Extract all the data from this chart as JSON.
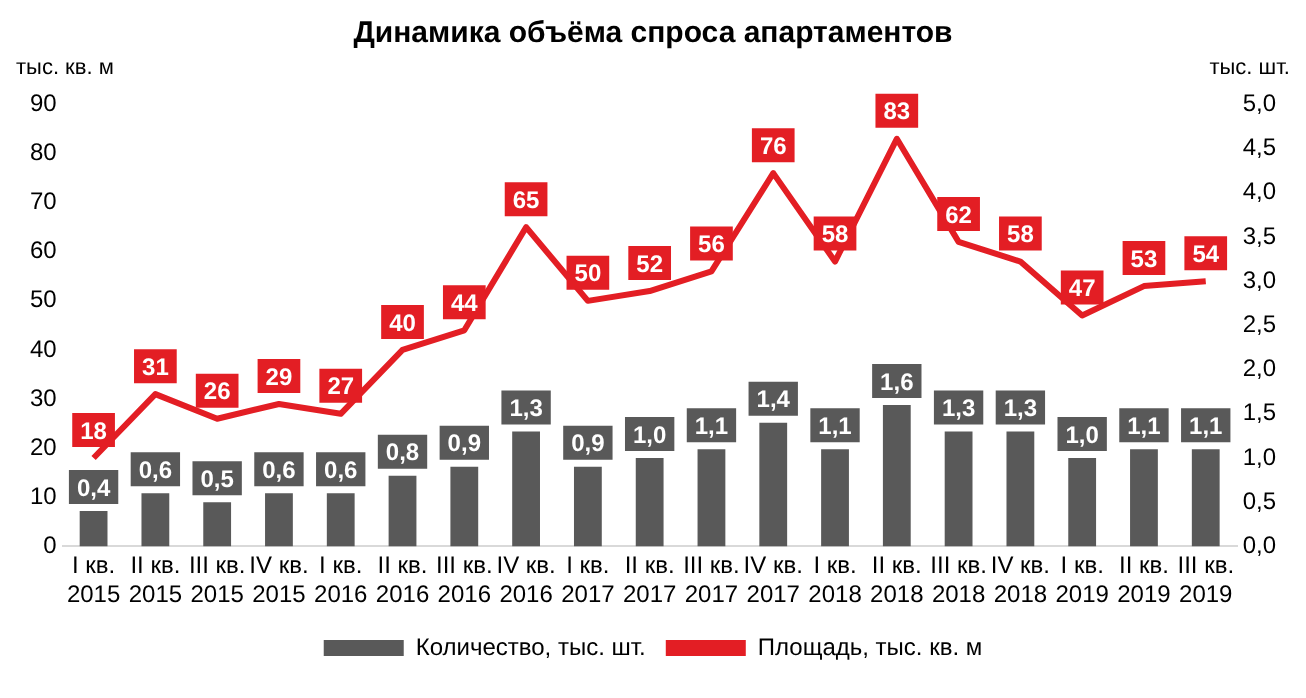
{
  "chart_data": {
    "type": "bar",
    "title": "Динамика объёма спроса апартаментов",
    "ylabel": "тыс. кв. м",
    "y2label": "тыс. шт.",
    "categories": [
      "I кв. 2015",
      "II кв. 2015",
      "III кв. 2015",
      "IV кв. 2015",
      "I кв. 2016",
      "II кв. 2016",
      "III кв. 2016",
      "IV кв. 2016",
      "I кв. 2017",
      "II кв. 2017",
      "III кв. 2017",
      "IV кв. 2017",
      "I кв. 2018",
      "II кв. 2018",
      "III кв. 2018",
      "IV кв. 2018",
      "I кв. 2019",
      "II кв. 2019",
      "III кв. 2019"
    ],
    "series": [
      {
        "name": "Количество, тыс. шт.",
        "axis": "y2",
        "color": "#595959",
        "values": [
          0.4,
          0.6,
          0.5,
          0.6,
          0.6,
          0.8,
          0.9,
          1.3,
          0.9,
          1.0,
          1.1,
          1.4,
          1.1,
          1.6,
          1.3,
          1.3,
          1.0,
          1.1,
          1.1
        ],
        "value_labels": [
          "0,4",
          "0,6",
          "0,5",
          "0,6",
          "0,6",
          "0,8",
          "0,9",
          "1,3",
          "0,9",
          "1,0",
          "1,1",
          "1,4",
          "1,1",
          "1,6",
          "1,3",
          "1,3",
          "1,0",
          "1,1",
          "1,1"
        ]
      },
      {
        "name": "Площадь, тыс. кв. м",
        "type": "line",
        "color": "#e31e24",
        "values": [
          18,
          31,
          26,
          29,
          27,
          40,
          44,
          65,
          50,
          52,
          56,
          76,
          58,
          83,
          62,
          58,
          47,
          53,
          54
        ],
        "value_labels": [
          "18",
          "31",
          "26",
          "29",
          "27",
          "40",
          "44",
          "65",
          "50",
          "52",
          "56",
          "76",
          "58",
          "83",
          "62",
          "58",
          "47",
          "53",
          "54"
        ]
      }
    ],
    "ylim": [
      0,
      90
    ],
    "yticks": [
      0,
      10,
      20,
      30,
      40,
      50,
      60,
      70,
      80,
      90
    ],
    "y2lim": [
      0,
      5
    ],
    "y2ticks": [
      {
        "value": 0,
        "label": "0,0"
      },
      {
        "value": 0.5,
        "label": "0,5"
      },
      {
        "value": 1,
        "label": "1,0"
      },
      {
        "value": 1.5,
        "label": "1,5"
      },
      {
        "value": 2,
        "label": "2,0"
      },
      {
        "value": 2.5,
        "label": "2,5"
      },
      {
        "value": 3,
        "label": "3,0"
      },
      {
        "value": 3.5,
        "label": "3,5"
      },
      {
        "value": 4,
        "label": "4,0"
      },
      {
        "value": 4.5,
        "label": "4,5"
      },
      {
        "value": 5,
        "label": "5,0"
      }
    ],
    "grid": false,
    "legend": "bottom",
    "marker": "none",
    "line_style": "solid"
  }
}
